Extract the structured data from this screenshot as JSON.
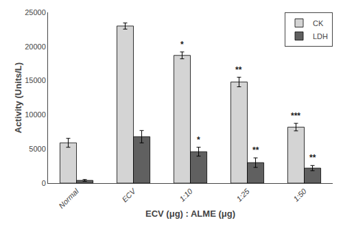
{
  "chart_data": {
    "type": "bar",
    "categories": [
      "Normal",
      "ECV",
      "1:10",
      "1:25",
      "1:50"
    ],
    "series": [
      {
        "name": "CK",
        "color": "#d4d4d4",
        "values": [
          5900,
          23000,
          18700,
          14800,
          8200
        ],
        "errors": [
          650,
          450,
          500,
          700,
          550
        ],
        "annotations": [
          null,
          null,
          "*",
          "**",
          "***"
        ]
      },
      {
        "name": "LDH",
        "color": "#606060",
        "values": [
          400,
          6800,
          4600,
          3000,
          2200
        ],
        "errors": [
          130,
          900,
          650,
          700,
          380
        ],
        "annotations": [
          null,
          null,
          "*",
          "**",
          "**"
        ]
      }
    ],
    "xlabel": "ECV (μg) : ALME (μg)",
    "ylabel": "Activity (Units/L)",
    "ylim": [
      0,
      25000
    ],
    "yticks": [
      0,
      5000,
      10000,
      15000,
      20000,
      25000
    ],
    "grid": false,
    "legend": "upper right"
  }
}
